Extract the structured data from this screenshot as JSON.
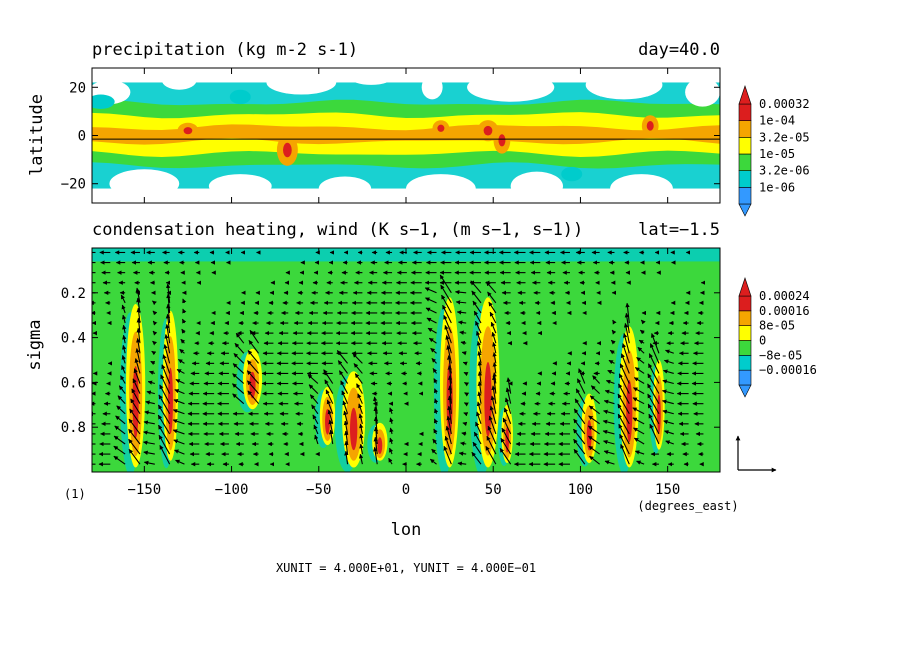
{
  "chart_data": [
    {
      "type": "heatmap",
      "title": "precipitation (kg m-2 s-1)",
      "title_right": "day=40.0",
      "ylabel": "latitude",
      "xlim": [
        -180,
        180
      ],
      "ylim": [
        -28,
        28
      ],
      "x_ticks": [
        -150,
        -100,
        -50,
        0,
        50,
        100,
        150
      ],
      "y_ticks": [
        {
          "value": 20,
          "label": "20"
        },
        {
          "value": 0,
          "label": "0"
        },
        {
          "value": -20,
          "label": "−20"
        }
      ],
      "legend": {
        "placement": "right",
        "labels": [
          "0.00032",
          "1e-04",
          "3.2e-05",
          "1e-05",
          "3.2e-06",
          "1e-06"
        ],
        "colors": [
          "#dc1e1e",
          "#f5a500",
          "#ffff00",
          "#3cd83c",
          "#00cccc",
          "#3399ff"
        ]
      },
      "background_color": "#ffffff",
      "reference_line_lat": -1.5,
      "bands": [
        {
          "lat_center": 0.5,
          "half_width": 13,
          "level": "#3cd83c"
        },
        {
          "lat_center": 0.5,
          "half_width": 8,
          "level": "#ffff00"
        },
        {
          "lat_center": 0.5,
          "half_width": 3,
          "level": "#f5a500"
        }
      ],
      "blobs": [
        {
          "lon": -170,
          "lat": 18,
          "rx": 12,
          "ry": 5,
          "color": "#ffffff"
        },
        {
          "lon": -130,
          "lat": 23,
          "rx": 10,
          "ry": 4,
          "color": "#ffffff"
        },
        {
          "lon": -60,
          "lat": 22,
          "rx": 20,
          "ry": 5,
          "color": "#ffffff"
        },
        {
          "lon": -20,
          "lat": 24,
          "rx": 12,
          "ry": 3,
          "color": "#ffffff"
        },
        {
          "lon": 15,
          "lat": 20,
          "rx": 6,
          "ry": 5,
          "color": "#ffffff"
        },
        {
          "lon": 60,
          "lat": 20,
          "rx": 25,
          "ry": 6,
          "color": "#ffffff"
        },
        {
          "lon": 125,
          "lat": 21,
          "rx": 22,
          "ry": 6,
          "color": "#ffffff"
        },
        {
          "lon": 170,
          "lat": 18,
          "rx": 10,
          "ry": 6,
          "color": "#ffffff"
        },
        {
          "lon": -150,
          "lat": -20,
          "rx": 20,
          "ry": 6,
          "color": "#ffffff"
        },
        {
          "lon": -95,
          "lat": -21,
          "rx": 18,
          "ry": 5,
          "color": "#ffffff"
        },
        {
          "lon": -35,
          "lat": -22,
          "rx": 15,
          "ry": 5,
          "color": "#ffffff"
        },
        {
          "lon": 20,
          "lat": -22,
          "rx": 20,
          "ry": 6,
          "color": "#ffffff"
        },
        {
          "lon": 75,
          "lat": -21,
          "rx": 15,
          "ry": 6,
          "color": "#ffffff"
        },
        {
          "lon": 135,
          "lat": -22,
          "rx": 18,
          "ry": 6,
          "color": "#ffffff"
        },
        {
          "lon": -175,
          "lat": 14,
          "rx": 8,
          "ry": 3,
          "color": "#00cccc"
        },
        {
          "lon": -95,
          "lat": 16,
          "rx": 6,
          "ry": 3,
          "color": "#00cccc"
        },
        {
          "lon": 95,
          "lat": -16,
          "rx": 6,
          "ry": 3,
          "color": "#00cccc"
        },
        {
          "lon": -125,
          "lat": 2,
          "rx": 2.5,
          "ry": 1.5,
          "color": "#dc1e1e"
        },
        {
          "lon": -68,
          "lat": -6,
          "rx": 2.5,
          "ry": 3,
          "color": "#dc1e1e"
        },
        {
          "lon": 20,
          "lat": 3,
          "rx": 2,
          "ry": 1.5,
          "color": "#dc1e1e"
        },
        {
          "lon": 47,
          "lat": 2,
          "rx": 2.5,
          "ry": 2,
          "color": "#dc1e1e"
        },
        {
          "lon": 55,
          "lat": -2,
          "rx": 2,
          "ry": 2.5,
          "color": "#dc1e1e"
        },
        {
          "lon": 140,
          "lat": 4,
          "rx": 2,
          "ry": 2,
          "color": "#dc1e1e"
        }
      ]
    },
    {
      "type": "heatmap",
      "title": "condensation heating, wind (K s−1, (m s−1, s−1))",
      "title_right": "lat=−1.5",
      "xlabel": "lon",
      "x_unit": "(degrees_east)",
      "ylabel": "sigma",
      "xlim": [
        -180,
        180
      ],
      "ylim": [
        1.0,
        0.0
      ],
      "x_ticks": [
        -150,
        -100,
        -50,
        0,
        50,
        100,
        150
      ],
      "y_ticks": [
        0.2,
        0.4,
        0.6,
        0.8
      ],
      "legend": {
        "placement": "right",
        "labels": [
          "0.00024",
          "0.00016",
          "8e-05",
          "0",
          "−8e-05",
          "−0.00016"
        ],
        "colors": [
          "#dc1e1e",
          "#f5a500",
          "#ffff00",
          "#3cd83c",
          "#00cccc",
          "#3399ff"
        ]
      },
      "background_color": "#3cd83c",
      "towers": [
        {
          "lon": -155,
          "top": 0.25,
          "bottom": 0.98,
          "w": 5
        },
        {
          "lon": -135,
          "top": 0.28,
          "bottom": 0.95,
          "w": 4
        },
        {
          "lon": -88,
          "top": 0.45,
          "bottom": 0.72,
          "w": 5
        },
        {
          "lon": -45,
          "top": 0.62,
          "bottom": 0.88,
          "w": 4
        },
        {
          "lon": -30,
          "top": 0.55,
          "bottom": 0.98,
          "w": 6
        },
        {
          "lon": -15,
          "top": 0.78,
          "bottom": 0.95,
          "w": 4
        },
        {
          "lon": 25,
          "top": 0.22,
          "bottom": 0.98,
          "w": 5
        },
        {
          "lon": 47,
          "top": 0.22,
          "bottom": 0.98,
          "w": 6
        },
        {
          "lon": 58,
          "top": 0.7,
          "bottom": 0.96,
          "w": 3
        },
        {
          "lon": 105,
          "top": 0.65,
          "bottom": 0.96,
          "w": 4
        },
        {
          "lon": 128,
          "top": 0.35,
          "bottom": 0.98,
          "w": 5
        },
        {
          "lon": 145,
          "top": 0.5,
          "bottom": 0.9,
          "w": 3
        }
      ],
      "vectors": {
        "xunit_ms": 40.0,
        "yunit": 0.4,
        "reference_label": "(1)",
        "footer": "XUNIT = 4.000E+01, YUNIT = 4.000E−01"
      }
    }
  ]
}
